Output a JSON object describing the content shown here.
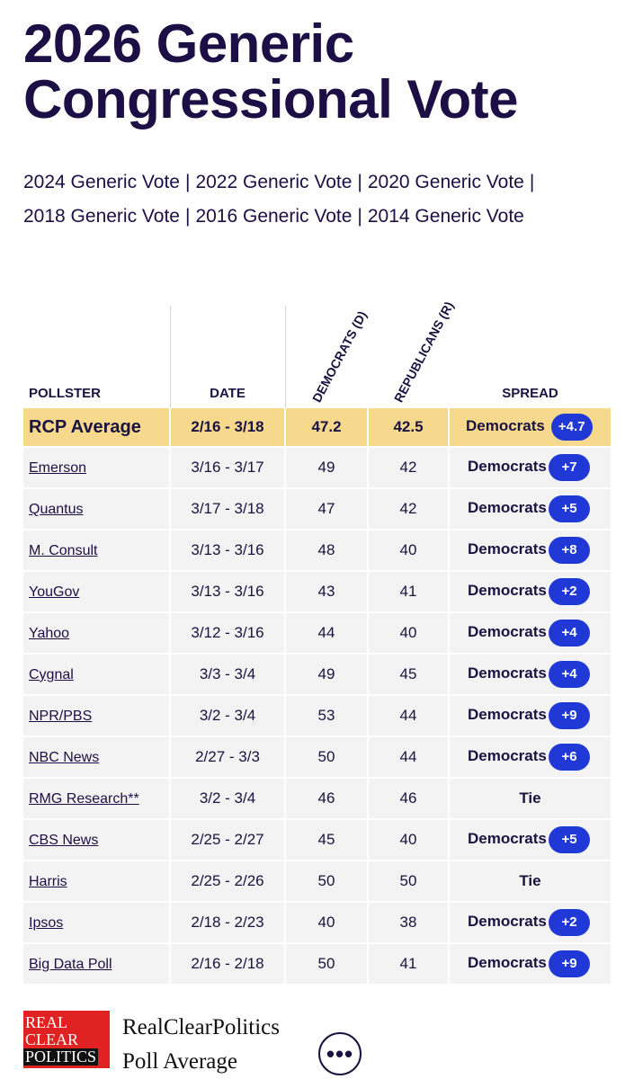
{
  "page": {
    "title_line1": "2026 Generic",
    "title_line2": "Congressional Vote"
  },
  "links": [
    "2024 Generic Vote",
    "2022 Generic Vote",
    "2020 Generic Vote",
    "2018 Generic Vote",
    "2016 Generic Vote",
    "2014 Generic Vote"
  ],
  "table": {
    "headers": {
      "pollster": "POLLSTER",
      "date": "DATE",
      "dem": "DEMOCRATS (D)",
      "rep": "REPUBLICANS (R)",
      "spread": "SPREAD"
    },
    "average": {
      "pollster": "RCP Average",
      "date": "2/16 - 3/18",
      "dem": "47.2",
      "rep": "42.5",
      "spread_party": "Democrats",
      "spread_value": "+4.7"
    },
    "rows": [
      {
        "pollster": "Emerson",
        "date": "3/16 - 3/17",
        "dem": "49",
        "rep": "42",
        "spread_party": "Democrats",
        "spread_value": "+7"
      },
      {
        "pollster": "Quantus",
        "date": "3/17 - 3/18",
        "dem": "47",
        "rep": "42",
        "spread_party": "Democrats",
        "spread_value": "+5"
      },
      {
        "pollster": "M. Consult",
        "date": "3/13 - 3/16",
        "dem": "48",
        "rep": "40",
        "spread_party": "Democrats",
        "spread_value": "+8"
      },
      {
        "pollster": "YouGov",
        "date": "3/13 - 3/16",
        "dem": "43",
        "rep": "41",
        "spread_party": "Democrats",
        "spread_value": "+2"
      },
      {
        "pollster": "Yahoo",
        "date": "3/12 - 3/16",
        "dem": "44",
        "rep": "40",
        "spread_party": "Democrats",
        "spread_value": "+4"
      },
      {
        "pollster": "Cygnal",
        "date": "3/3 - 3/4",
        "dem": "49",
        "rep": "45",
        "spread_party": "Democrats",
        "spread_value": "+4"
      },
      {
        "pollster": "NPR/PBS",
        "date": "3/2 - 3/4",
        "dem": "53",
        "rep": "44",
        "spread_party": "Democrats",
        "spread_value": "+9"
      },
      {
        "pollster": "NBC News",
        "date": "2/27 - 3/3",
        "dem": "50",
        "rep": "44",
        "spread_party": "Democrats",
        "spread_value": "+6"
      },
      {
        "pollster": "RMG Research**",
        "date": "3/2 - 3/4",
        "dem": "46",
        "rep": "46",
        "spread_party": "Tie",
        "spread_value": ""
      },
      {
        "pollster": "CBS News",
        "date": "2/25 - 2/27",
        "dem": "45",
        "rep": "40",
        "spread_party": "Democrats",
        "spread_value": "+5"
      },
      {
        "pollster": "Harris",
        "date": "2/25 - 2/26",
        "dem": "50",
        "rep": "50",
        "spread_party": "Tie",
        "spread_value": ""
      },
      {
        "pollster": "Ipsos",
        "date": "2/18 - 2/23",
        "dem": "40",
        "rep": "38",
        "spread_party": "Democrats",
        "spread_value": "+2"
      },
      {
        "pollster": "Big Data Poll",
        "date": "2/16 - 2/18",
        "dem": "50",
        "rep": "41",
        "spread_party": "Democrats",
        "spread_value": "+9"
      }
    ]
  },
  "footer": {
    "logo_line1": "REAL",
    "logo_line2": "CLEAR",
    "logo_line3": "POLITICS",
    "brand_line1": "RealClearPolitics",
    "brand_line2": "Poll Average",
    "more_glyph": "•••"
  },
  "colors": {
    "badge": "#2039d6",
    "average_row": "#f6d98d",
    "title": "#1c0f45",
    "logo": "#e02222"
  }
}
